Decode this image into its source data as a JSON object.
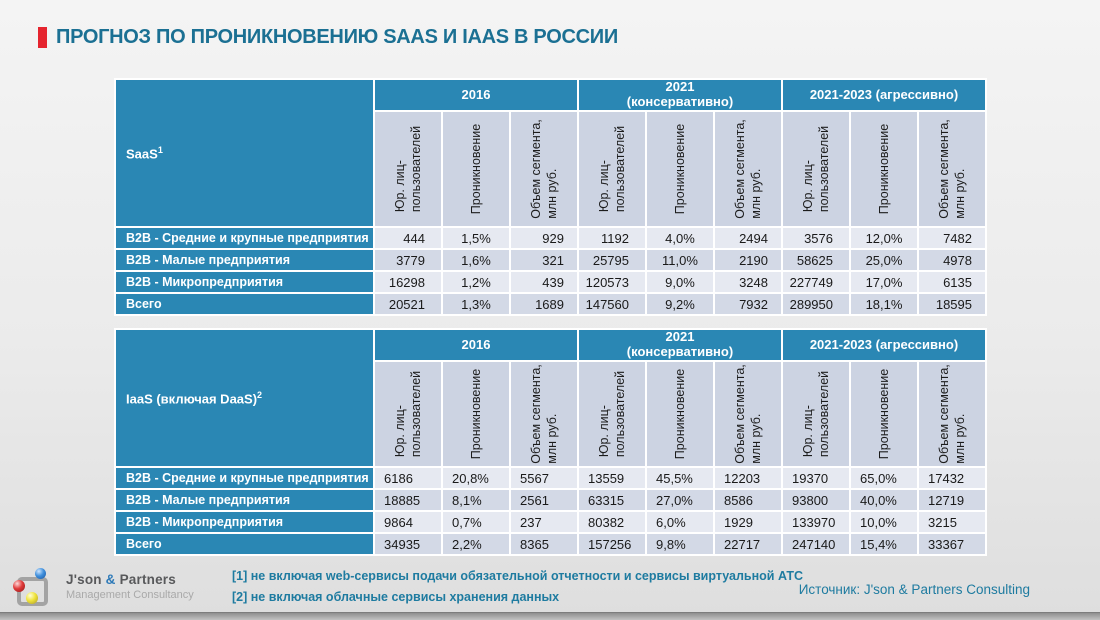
{
  "slide": {
    "title": "ПРОГНОЗ ПО ПРОНИКНОВЕНИЮ SAAS И IAAS В РОССИИ",
    "source": "Источник: J'son & Partners Consulting",
    "footnotes": [
      "[1] не включая web-сервисы подачи обязательной отчетности и сервисы виртуальной АТС",
      "[2] не включая облачные сервисы хранения данных"
    ],
    "logo": {
      "name_part1": "J'son ",
      "amp": "&",
      "name_part2": " Partners",
      "subtitle": "Management Consultancy"
    }
  },
  "colors": {
    "accent_red": "#e5242e",
    "title_text": "#1b7093",
    "table_teal": "#2a87b4",
    "metric_header_bg": "#ccd3e2",
    "row_light": "#e6e9f1",
    "row_dark": "#d3d9e6",
    "footnote_teal": "#1e7ba0"
  },
  "columns": {
    "groups": [
      "2016",
      "2021\n(консервативно)",
      "2021-2023 (агрессивно)"
    ],
    "metrics": [
      "Юр. лиц-\nпользователей",
      "Проникновение",
      "Объем сегмента,\nмлн руб."
    ]
  },
  "saas": {
    "label": "SaaS",
    "footnote_ref": "1",
    "rows": [
      {
        "label": "B2B - Средние и крупные предприятия",
        "v": [
          "444",
          "1,5%",
          "929",
          "1192",
          "4,0%",
          "2494",
          "3576",
          "12,0%",
          "7482"
        ]
      },
      {
        "label": "B2B - Малые предприятия",
        "v": [
          "3779",
          "1,6%",
          "321",
          "25795",
          "11,0%",
          "2190",
          "58625",
          "25,0%",
          "4978"
        ]
      },
      {
        "label": "B2B - Микропредприятия",
        "v": [
          "16298",
          "1,2%",
          "439",
          "120573",
          "9,0%",
          "3248",
          "227749",
          "17,0%",
          "6135"
        ]
      },
      {
        "label": "Всего",
        "v": [
          "20521",
          "1,3%",
          "1689",
          "147560",
          "9,2%",
          "7932",
          "289950",
          "18,1%",
          "18595"
        ]
      }
    ]
  },
  "iaas": {
    "label": "IaaS (включая DaaS)",
    "footnote_ref": "2",
    "rows": [
      {
        "label": "B2B - Средние и крупные предприятия",
        "v": [
          "6186",
          "20,8%",
          "5567",
          "13559",
          "45,5%",
          "12203",
          "19370",
          "65,0%",
          "17432"
        ]
      },
      {
        "label": "B2B - Малые предприятия",
        "v": [
          "18885",
          "8,1%",
          "2561",
          "63315",
          "27,0%",
          "8586",
          "93800",
          "40,0%",
          "12719"
        ]
      },
      {
        "label": "B2B - Микропредприятия",
        "v": [
          "9864",
          "0,7%",
          "237",
          "80382",
          "6,0%",
          "1929",
          "133970",
          "10,0%",
          "3215"
        ]
      },
      {
        "label": "Всего",
        "v": [
          "34935",
          "2,2%",
          "8365",
          "157256",
          "9,8%",
          "22717",
          "247140",
          "15,4%",
          "33367"
        ]
      }
    ]
  }
}
